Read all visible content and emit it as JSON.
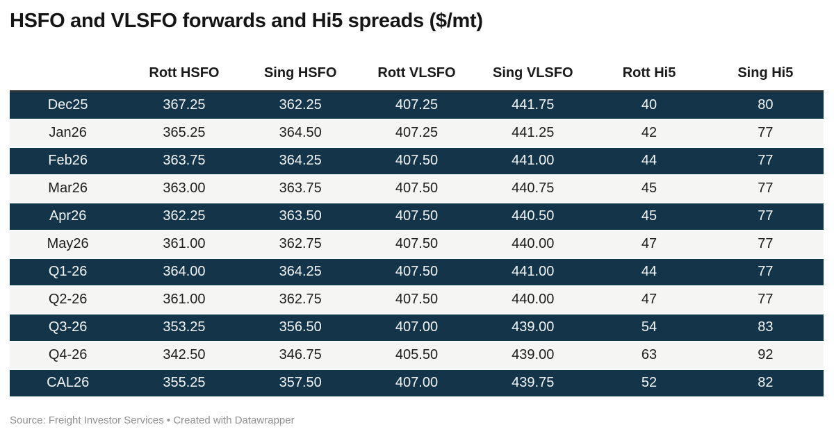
{
  "title": "HSFO and VLSFO forwards and Hi5 spreads ($/mt)",
  "footer": {
    "source": "Source: Freight Investor Services • Created with Datawrapper"
  },
  "colors": {
    "dark_row_bg": "#14344a",
    "dark_row_text": "#f2f5f7",
    "light_row_bg": "#f5f5f3",
    "light_row_text": "#1d1d1d",
    "header_rule": "#2e3338",
    "footer_text": "#8f8f8f",
    "title_text": "#151515"
  },
  "chart_data": {
    "type": "table",
    "title": "HSFO and VLSFO forwards and Hi5 spreads ($/mt)",
    "columns": [
      "",
      "Rott HSFO",
      "Sing HSFO",
      "Rott VLSFO",
      "Sing VLSFO",
      "Rott Hi5",
      "Sing Hi5"
    ],
    "rows": [
      {
        "label": "Dec25",
        "values": [
          "367.25",
          "362.25",
          "407.25",
          "441.75",
          "40",
          "80"
        ]
      },
      {
        "label": "Jan26",
        "values": [
          "365.25",
          "364.50",
          "407.25",
          "441.25",
          "42",
          "77"
        ]
      },
      {
        "label": "Feb26",
        "values": [
          "363.75",
          "364.25",
          "407.50",
          "441.00",
          "44",
          "77"
        ]
      },
      {
        "label": "Mar26",
        "values": [
          "363.00",
          "363.75",
          "407.50",
          "440.75",
          "45",
          "77"
        ]
      },
      {
        "label": "Apr26",
        "values": [
          "362.25",
          "363.50",
          "407.50",
          "440.50",
          "45",
          "77"
        ]
      },
      {
        "label": "May26",
        "values": [
          "361.00",
          "362.75",
          "407.50",
          "440.00",
          "47",
          "77"
        ]
      },
      {
        "label": "Q1-26",
        "values": [
          "364.00",
          "364.25",
          "407.50",
          "441.00",
          "44",
          "77"
        ]
      },
      {
        "label": "Q2-26",
        "values": [
          "361.00",
          "362.75",
          "407.50",
          "440.00",
          "47",
          "77"
        ]
      },
      {
        "label": "Q3-26",
        "values": [
          "353.25",
          "356.50",
          "407.00",
          "439.00",
          "54",
          "83"
        ]
      },
      {
        "label": "Q4-26",
        "values": [
          "342.50",
          "346.75",
          "405.50",
          "439.00",
          "63",
          "92"
        ]
      },
      {
        "label": "CAL26",
        "values": [
          "355.25",
          "357.50",
          "407.00",
          "439.75",
          "52",
          "82"
        ]
      }
    ],
    "layout_hints": {
      "striped": "alternating dark-navy and light-gray rows, first row dark",
      "alignment": "all cells centered",
      "grid": "no vertical gridlines, white row separators"
    }
  }
}
